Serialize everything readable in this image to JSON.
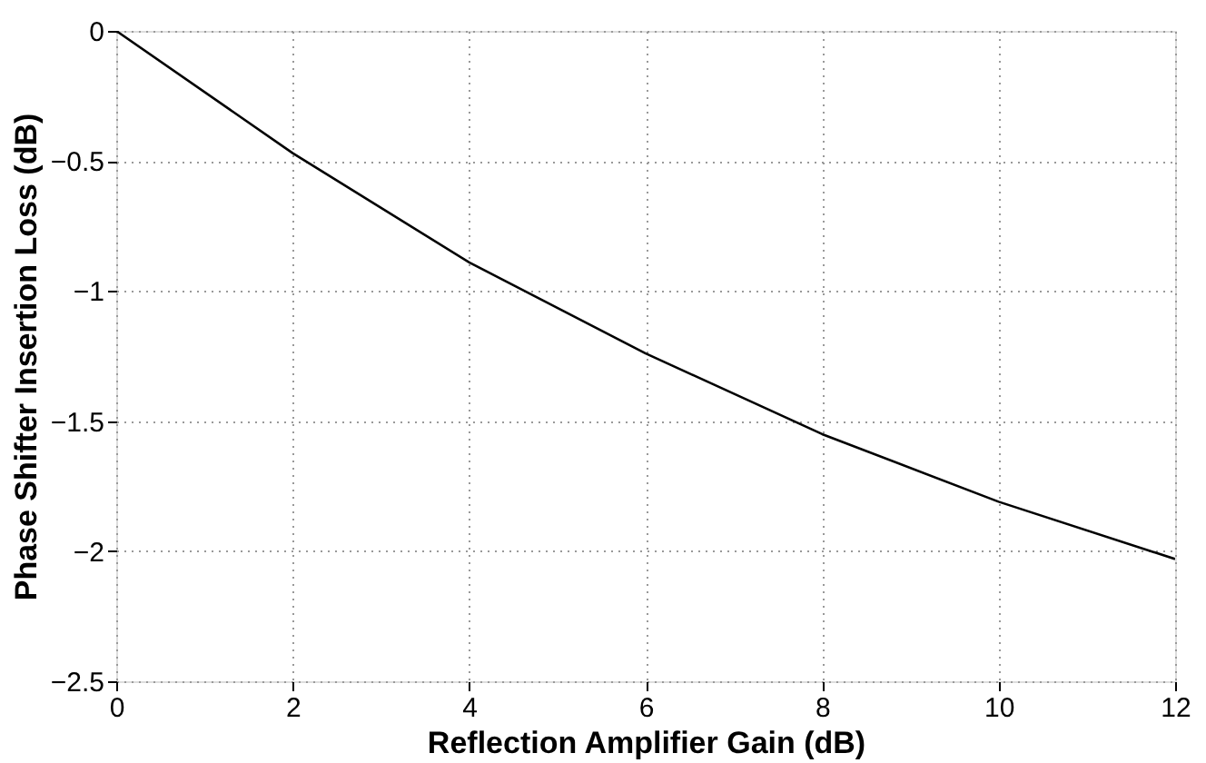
{
  "chart_data": {
    "type": "line",
    "xlabel": "Reflection Amplifier Gain (dB)",
    "ylabel": "Phase Shifter Insertion Loss (dB)",
    "x": [
      0,
      2,
      4,
      6,
      8,
      10,
      12
    ],
    "series": [
      {
        "color": "#000000",
        "values": [
          0,
          -0.47,
          -0.89,
          -1.24,
          -1.55,
          -1.81,
          -2.03
        ]
      }
    ],
    "xlim": [
      0,
      12
    ],
    "xticks": [
      0,
      2,
      4,
      6,
      8,
      10,
      12
    ],
    "ylim": [
      -2.5,
      0
    ],
    "yticks": [
      -2.5,
      -2,
      -1.5,
      -1,
      -0.5,
      0
    ],
    "grid": true,
    "marker": "none",
    "line_style": "solid",
    "legend": false
  }
}
